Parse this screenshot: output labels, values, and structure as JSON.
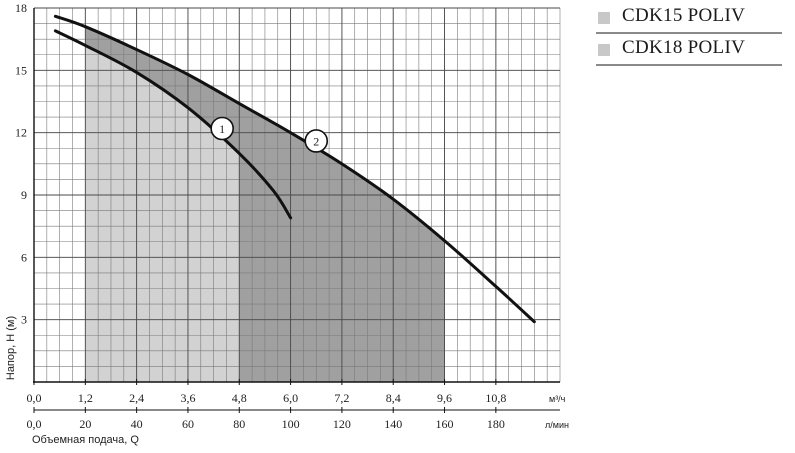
{
  "chart_data": {
    "type": "line",
    "ylabel": "Напор, Н (м)",
    "xlabel": "Объемная подача, Q",
    "x_unit_primary": "м³/ч",
    "x_unit_secondary": "л/мин",
    "xlim": [
      0,
      12.3
    ],
    "ylim": [
      0,
      18
    ],
    "grid": true,
    "y_ticks": [
      "3",
      "6",
      "9",
      "12",
      "15",
      "18"
    ],
    "x_ticks_primary": [
      {
        "v": 0,
        "label": "0,0"
      },
      {
        "v": 1.2,
        "label": "1,2"
      },
      {
        "v": 2.4,
        "label": "2,4"
      },
      {
        "v": 3.6,
        "label": "3,6"
      },
      {
        "v": 4.8,
        "label": "4,8"
      },
      {
        "v": 6.0,
        "label": "6,0"
      },
      {
        "v": 7.2,
        "label": "7,2"
      },
      {
        "v": 8.4,
        "label": "8,4"
      },
      {
        "v": 9.6,
        "label": "9,6"
      },
      {
        "v": 10.8,
        "label": "10,8"
      }
    ],
    "x_ticks_secondary": [
      {
        "v": 0,
        "label": "0,0"
      },
      {
        "v": 1.2,
        "label": "20"
      },
      {
        "v": 2.4,
        "label": "40"
      },
      {
        "v": 3.6,
        "label": "60"
      },
      {
        "v": 4.8,
        "label": "80"
      },
      {
        "v": 6.0,
        "label": "100"
      },
      {
        "v": 7.2,
        "label": "120"
      },
      {
        "v": 8.4,
        "label": "140"
      },
      {
        "v": 9.6,
        "label": "160"
      },
      {
        "v": 10.8,
        "label": "180"
      }
    ],
    "series": [
      {
        "name": "CDK15 POLIV",
        "marker": "1",
        "marker_point": [
          4.4,
          12.2
        ],
        "operating_range": [
          1.2,
          4.8
        ],
        "color": "#d2d2d2",
        "points": [
          [
            0.5,
            16.9
          ],
          [
            1.2,
            16.2
          ],
          [
            2.4,
            14.9
          ],
          [
            3.6,
            13.2
          ],
          [
            4.8,
            11.0
          ],
          [
            5.6,
            9.2
          ],
          [
            6.0,
            7.9
          ]
        ]
      },
      {
        "name": "CDK18 POLIV",
        "marker": "2",
        "marker_point": [
          6.6,
          11.6
        ],
        "operating_range": [
          4.8,
          9.6
        ],
        "color": "#a0a0a0",
        "points": [
          [
            0.5,
            17.6
          ],
          [
            1.2,
            17.1
          ],
          [
            2.4,
            16.0
          ],
          [
            3.6,
            14.8
          ],
          [
            4.8,
            13.4
          ],
          [
            6.0,
            12.0
          ],
          [
            7.2,
            10.5
          ],
          [
            8.4,
            8.8
          ],
          [
            9.6,
            6.8
          ],
          [
            10.8,
            4.6
          ],
          [
            11.7,
            2.9
          ]
        ]
      }
    ]
  },
  "legend": {
    "items": [
      {
        "label": "CDK15 POLIV",
        "color": "#c8c8c8"
      },
      {
        "label": "CDK18 POLIV",
        "color": "#c8c8c8"
      }
    ]
  }
}
